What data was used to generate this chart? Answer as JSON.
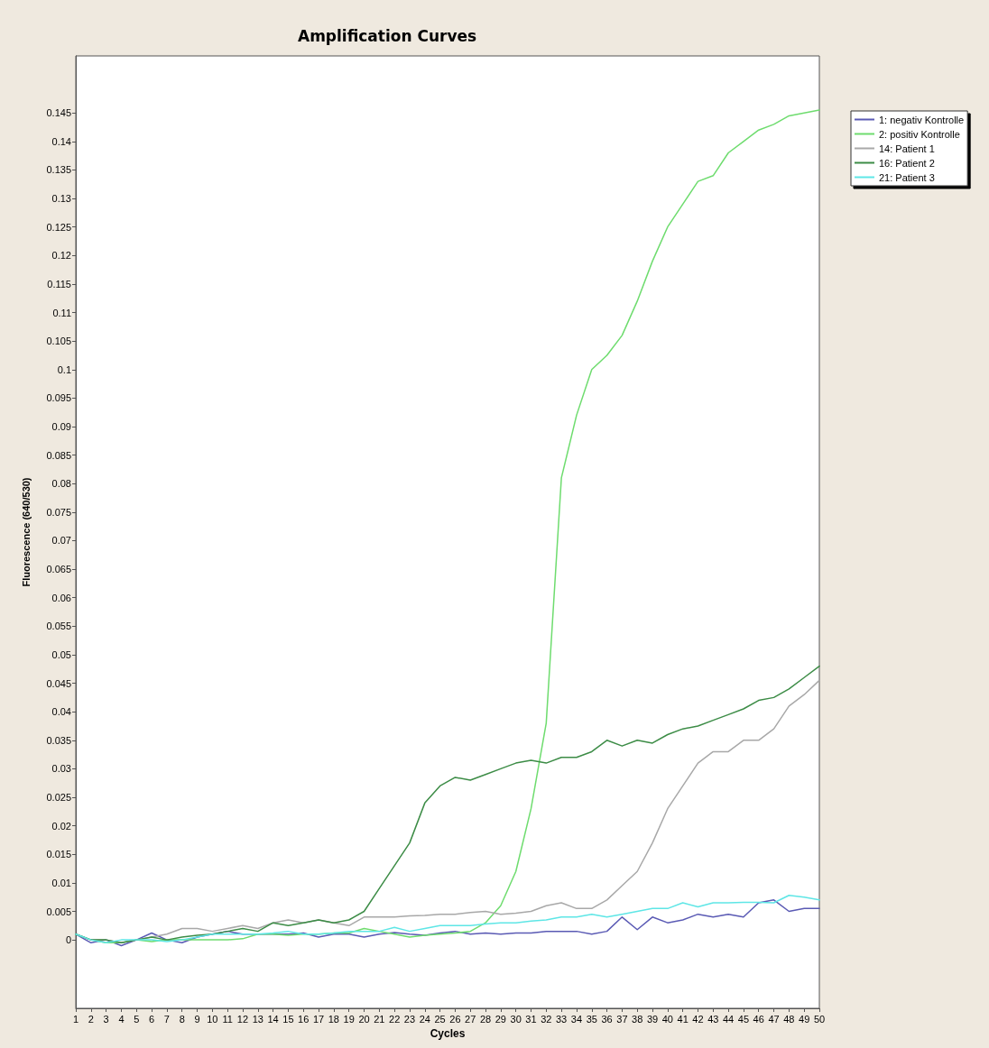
{
  "chart_data": {
    "type": "line",
    "title": "Amplification Curves",
    "xlabel": "Cycles",
    "ylabel": "Fluorescence (640/530)",
    "x": [
      1,
      2,
      3,
      4,
      5,
      6,
      7,
      8,
      9,
      10,
      11,
      12,
      13,
      14,
      15,
      16,
      17,
      18,
      19,
      20,
      21,
      22,
      23,
      24,
      25,
      26,
      27,
      28,
      29,
      30,
      31,
      32,
      33,
      34,
      35,
      36,
      37,
      38,
      39,
      40,
      41,
      42,
      43,
      44,
      45,
      46,
      47,
      48,
      49,
      50
    ],
    "xlim": [
      1,
      50
    ],
    "xticks": [
      1,
      2,
      3,
      4,
      5,
      6,
      7,
      8,
      9,
      10,
      11,
      12,
      13,
      14,
      15,
      16,
      17,
      18,
      19,
      20,
      21,
      22,
      23,
      24,
      25,
      26,
      27,
      28,
      29,
      30,
      31,
      32,
      33,
      34,
      35,
      36,
      37,
      38,
      39,
      40,
      41,
      42,
      43,
      44,
      45,
      46,
      47,
      48,
      49,
      50
    ],
    "ylim": [
      -0.012,
      0.155
    ],
    "yticks": [
      0,
      0.005,
      0.01,
      0.015,
      0.02,
      0.025,
      0.03,
      0.035,
      0.04,
      0.045,
      0.05,
      0.055,
      0.06,
      0.065,
      0.07,
      0.075,
      0.08,
      0.085,
      0.09,
      0.095,
      0.1,
      0.105,
      0.11,
      0.115,
      0.12,
      0.125,
      0.13,
      0.135,
      0.14,
      0.145
    ],
    "grid": false,
    "legend": "top right",
    "marker": "none",
    "line_style": "solid",
    "series": [
      {
        "name": "1: negativ Kontrolle",
        "color": "#5a5ab4",
        "values": [
          0.001,
          -0.0005,
          0,
          -0.001,
          0,
          0.0012,
          0,
          -0.0005,
          0.0005,
          0.001,
          0.0015,
          0.001,
          0.001,
          0.001,
          0.001,
          0.0012,
          0.0005,
          0.001,
          0.001,
          0.0005,
          0.001,
          0.0013,
          0.001,
          0.0008,
          0.0012,
          0.0015,
          0.001,
          0.0012,
          0.001,
          0.0012,
          0.0012,
          0.0015,
          0.0015,
          0.0015,
          0.001,
          0.0015,
          0.004,
          0.0018,
          0.004,
          0.003,
          0.0035,
          0.0045,
          0.004,
          0.0045,
          0.004,
          0.0065,
          0.007,
          0.005,
          0.0055,
          0.0055
        ]
      },
      {
        "name": "2: positiv Kontrolle",
        "color": "#6edc6e",
        "values": [
          0.001,
          0,
          -0.0005,
          -0.0005,
          0,
          -0.0003,
          0,
          0,
          0,
          0,
          0,
          0.0002,
          0.001,
          0.001,
          0.0008,
          0.001,
          0.001,
          0.0012,
          0.0012,
          0.002,
          0.0015,
          0.001,
          0.0005,
          0.0008,
          0.001,
          0.0012,
          0.0015,
          0.003,
          0.006,
          0.012,
          0.023,
          0.038,
          0.081,
          0.092,
          0.1,
          0.1025,
          0.106,
          0.112,
          0.119,
          0.125,
          0.129,
          0.133,
          0.134,
          0.138,
          0.14,
          0.142,
          0.143,
          0.1445,
          0.145,
          0.1455
        ]
      },
      {
        "name": "14: Patient 1",
        "color": "#a8a8a8",
        "values": [
          0.001,
          0,
          0,
          -0.0005,
          0,
          0.0005,
          0.001,
          0.002,
          0.002,
          0.0015,
          0.002,
          0.0025,
          0.002,
          0.003,
          0.0035,
          0.003,
          0.0035,
          0.003,
          0.0025,
          0.004,
          0.004,
          0.004,
          0.0042,
          0.0043,
          0.0045,
          0.0045,
          0.0048,
          0.005,
          0.0045,
          0.0047,
          0.005,
          0.006,
          0.0065,
          0.0055,
          0.0055,
          0.007,
          0.0095,
          0.012,
          0.017,
          0.023,
          0.027,
          0.031,
          0.033,
          0.033,
          0.035,
          0.035,
          0.037,
          0.041,
          0.043,
          0.0455
        ]
      },
      {
        "name": "16: Patient 2",
        "color": "#3c8c46",
        "values": [
          0.001,
          0,
          0,
          -0.0005,
          0,
          0.0005,
          0,
          0.0005,
          0.0008,
          0.001,
          0.0015,
          0.002,
          0.0015,
          0.003,
          0.0025,
          0.003,
          0.0035,
          0.003,
          0.0035,
          0.005,
          0.009,
          0.013,
          0.017,
          0.024,
          0.027,
          0.0285,
          0.028,
          0.029,
          0.03,
          0.031,
          0.0315,
          0.031,
          0.032,
          0.032,
          0.033,
          0.035,
          0.034,
          0.035,
          0.0345,
          0.036,
          0.037,
          0.0375,
          0.0385,
          0.0395,
          0.0405,
          0.042,
          0.0425,
          0.044,
          0.046,
          0.048
        ]
      },
      {
        "name": "21: Patient 3",
        "color": "#5ee6e6",
        "values": [
          0.001,
          0,
          -0.0005,
          0,
          0,
          0,
          -0.0003,
          0,
          0.0005,
          0.001,
          0.001,
          0.001,
          0.001,
          0.0012,
          0.0015,
          0.001,
          0.001,
          0.0012,
          0.0015,
          0.0015,
          0.0015,
          0.0022,
          0.0015,
          0.002,
          0.0025,
          0.0025,
          0.0025,
          0.0028,
          0.003,
          0.003,
          0.0033,
          0.0035,
          0.004,
          0.004,
          0.0045,
          0.004,
          0.0045,
          0.005,
          0.0055,
          0.0055,
          0.0065,
          0.0058,
          0.0065,
          0.0065,
          0.0066,
          0.0066,
          0.0065,
          0.0078,
          0.0075,
          0.007
        ]
      }
    ]
  }
}
